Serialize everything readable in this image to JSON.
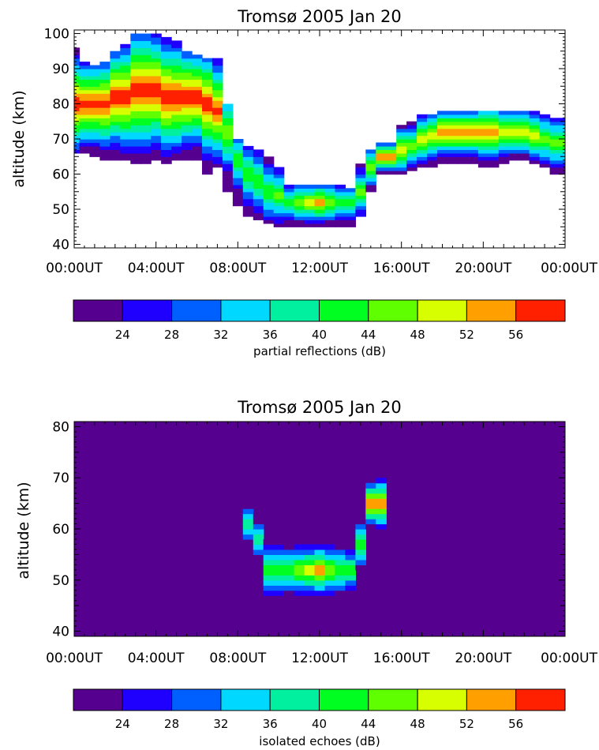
{
  "chart_data": [
    {
      "type": "heatmap",
      "title": "Tromsø 2005 Jan 20",
      "ylabel": "altitude (km)",
      "xlabel": "",
      "x_tick_labels": [
        "00:00UT",
        "04:00UT",
        "08:00UT",
        "12:00UT",
        "16:00UT",
        "20:00UT",
        "00:00UT"
      ],
      "x_range_hours": [
        0,
        24
      ],
      "y_ticks": [
        40,
        50,
        60,
        70,
        80,
        90,
        100
      ],
      "ylim": [
        39,
        101
      ],
      "background": "#ffffff",
      "colorbar": {
        "label": "partial reflections (dB)",
        "tick_labels": [
          "24",
          "28",
          "32",
          "36",
          "40",
          "44",
          "48",
          "52",
          "56"
        ],
        "range": [
          20,
          60
        ]
      },
      "columns": [
        {
          "t": 0.0,
          "bottom": 66,
          "top": 96,
          "peak": 80,
          "max": 60
        },
        {
          "t": 0.5,
          "bottom": 66,
          "top": 92,
          "peak": 80,
          "max": 60
        },
        {
          "t": 1.0,
          "bottom": 65,
          "top": 91,
          "peak": 80,
          "max": 60
        },
        {
          "t": 1.5,
          "bottom": 64,
          "top": 92,
          "peak": 80,
          "max": 60
        },
        {
          "t": 2.0,
          "bottom": 64,
          "top": 95,
          "peak": 82,
          "max": 60
        },
        {
          "t": 2.5,
          "bottom": 64,
          "top": 97,
          "peak": 82,
          "max": 60
        },
        {
          "t": 3.0,
          "bottom": 63,
          "top": 100,
          "peak": 84,
          "max": 60
        },
        {
          "t": 3.5,
          "bottom": 63,
          "top": 100,
          "peak": 84,
          "max": 60
        },
        {
          "t": 4.0,
          "bottom": 64,
          "top": 100,
          "peak": 84,
          "max": 60
        },
        {
          "t": 4.5,
          "bottom": 63,
          "top": 99,
          "peak": 82,
          "max": 60
        },
        {
          "t": 5.0,
          "bottom": 64,
          "top": 98,
          "peak": 82,
          "max": 60
        },
        {
          "t": 5.5,
          "bottom": 64,
          "top": 95,
          "peak": 82,
          "max": 60
        },
        {
          "t": 6.0,
          "bottom": 64,
          "top": 94,
          "peak": 82,
          "max": 60
        },
        {
          "t": 6.5,
          "bottom": 60,
          "top": 93,
          "peak": 80,
          "max": 60
        },
        {
          "t": 7.0,
          "bottom": 62,
          "top": 93,
          "peak": 78,
          "max": 58
        },
        {
          "t": 7.5,
          "bottom": 55,
          "top": 80,
          "peak": 72,
          "max": 48
        },
        {
          "t": 8.0,
          "bottom": 51,
          "top": 70,
          "peak": 64,
          "max": 44
        },
        {
          "t": 8.5,
          "bottom": 48,
          "top": 68,
          "peak": 60,
          "max": 44
        },
        {
          "t": 9.0,
          "bottom": 47,
          "top": 67,
          "peak": 58,
          "max": 44
        },
        {
          "t": 9.5,
          "bottom": 46,
          "top": 65,
          "peak": 55,
          "max": 44
        },
        {
          "t": 10.0,
          "bottom": 45,
          "top": 62,
          "peak": 54,
          "max": 46
        },
        {
          "t": 10.5,
          "bottom": 45,
          "top": 57,
          "peak": 52,
          "max": 46
        },
        {
          "t": 11.0,
          "bottom": 45,
          "top": 57,
          "peak": 52,
          "max": 48
        },
        {
          "t": 11.5,
          "bottom": 45,
          "top": 57,
          "peak": 52,
          "max": 52
        },
        {
          "t": 12.0,
          "bottom": 45,
          "top": 57,
          "peak": 52,
          "max": 56
        },
        {
          "t": 12.5,
          "bottom": 45,
          "top": 57,
          "peak": 52,
          "max": 50
        },
        {
          "t": 13.0,
          "bottom": 45,
          "top": 57,
          "peak": 52,
          "max": 46
        },
        {
          "t": 13.5,
          "bottom": 45,
          "top": 56,
          "peak": 52,
          "max": 44
        },
        {
          "t": 14.0,
          "bottom": 48,
          "top": 63,
          "peak": 55,
          "max": 46
        },
        {
          "t": 14.5,
          "bottom": 55,
          "top": 67,
          "peak": 62,
          "max": 48
        },
        {
          "t": 15.0,
          "bottom": 60,
          "top": 69,
          "peak": 65,
          "max": 58
        },
        {
          "t": 15.5,
          "bottom": 60,
          "top": 69,
          "peak": 65,
          "max": 56
        },
        {
          "t": 16.0,
          "bottom": 60,
          "top": 74,
          "peak": 67,
          "max": 52
        },
        {
          "t": 16.5,
          "bottom": 61,
          "top": 75,
          "peak": 68,
          "max": 50
        },
        {
          "t": 17.0,
          "bottom": 62,
          "top": 77,
          "peak": 70,
          "max": 52
        },
        {
          "t": 17.5,
          "bottom": 62,
          "top": 77,
          "peak": 71,
          "max": 54
        },
        {
          "t": 18.0,
          "bottom": 63,
          "top": 78,
          "peak": 72,
          "max": 56
        },
        {
          "t": 18.5,
          "bottom": 63,
          "top": 78,
          "peak": 72,
          "max": 56
        },
        {
          "t": 19.0,
          "bottom": 63,
          "top": 78,
          "peak": 72,
          "max": 56
        },
        {
          "t": 19.5,
          "bottom": 63,
          "top": 78,
          "peak": 72,
          "max": 56
        },
        {
          "t": 20.0,
          "bottom": 62,
          "top": 78,
          "peak": 72,
          "max": 58
        },
        {
          "t": 20.5,
          "bottom": 62,
          "top": 78,
          "peak": 72,
          "max": 58
        },
        {
          "t": 21.0,
          "bottom": 63,
          "top": 78,
          "peak": 72,
          "max": 54
        },
        {
          "t": 21.5,
          "bottom": 64,
          "top": 78,
          "peak": 72,
          "max": 52
        },
        {
          "t": 22.0,
          "bottom": 64,
          "top": 78,
          "peak": 72,
          "max": 52
        },
        {
          "t": 22.5,
          "bottom": 63,
          "top": 78,
          "peak": 71,
          "max": 50
        },
        {
          "t": 23.0,
          "bottom": 62,
          "top": 77,
          "peak": 70,
          "max": 48
        },
        {
          "t": 23.5,
          "bottom": 60,
          "top": 76,
          "peak": 69,
          "max": 46
        },
        {
          "t": 24.0,
          "bottom": 60,
          "top": 76,
          "peak": 69,
          "max": 46
        }
      ]
    },
    {
      "type": "heatmap",
      "title": "Tromsø 2005 Jan 20",
      "ylabel": "altitude (km)",
      "xlabel": "",
      "x_tick_labels": [
        "00:00UT",
        "04:00UT",
        "08:00UT",
        "12:00UT",
        "16:00UT",
        "20:00UT",
        "00:00UT"
      ],
      "x_range_hours": [
        0,
        24
      ],
      "y_ticks": [
        40,
        50,
        60,
        70,
        80
      ],
      "ylim": [
        39,
        81
      ],
      "background": "#55008f",
      "colorbar": {
        "label": "isolated echoes (dB)",
        "tick_labels": [
          "24",
          "28",
          "32",
          "36",
          "40",
          "44",
          "48",
          "52",
          "56"
        ],
        "range": [
          20,
          60
        ]
      },
      "columns": [
        {
          "t": 8.5,
          "bottom": 58,
          "top": 66,
          "peak": 61,
          "max": 40
        },
        {
          "t": 9.0,
          "bottom": 55,
          "top": 63,
          "peak": 58,
          "max": 42
        },
        {
          "t": 9.5,
          "bottom": 47,
          "top": 58,
          "peak": 52,
          "max": 46
        },
        {
          "t": 10.0,
          "bottom": 47,
          "top": 58,
          "peak": 52,
          "max": 46
        },
        {
          "t": 10.5,
          "bottom": 47,
          "top": 57,
          "peak": 52,
          "max": 46
        },
        {
          "t": 11.0,
          "bottom": 47,
          "top": 57,
          "peak": 52,
          "max": 48
        },
        {
          "t": 11.5,
          "bottom": 47,
          "top": 57,
          "peak": 52,
          "max": 52
        },
        {
          "t": 12.0,
          "bottom": 47,
          "top": 57,
          "peak": 52,
          "max": 56
        },
        {
          "t": 12.5,
          "bottom": 47,
          "top": 57,
          "peak": 52,
          "max": 50
        },
        {
          "t": 13.0,
          "bottom": 47,
          "top": 57,
          "peak": 52,
          "max": 46
        },
        {
          "t": 13.5,
          "bottom": 47,
          "top": 56,
          "peak": 52,
          "max": 44
        },
        {
          "t": 14.0,
          "bottom": 52,
          "top": 62,
          "peak": 57,
          "max": 46
        },
        {
          "t": 14.5,
          "bottom": 60,
          "top": 69,
          "peak": 65,
          "max": 56
        },
        {
          "t": 15.0,
          "bottom": 60,
          "top": 70,
          "peak": 65,
          "max": 58
        }
      ]
    }
  ],
  "palette": [
    "#55008f",
    "#1f00ff",
    "#0060ff",
    "#00d8ff",
    "#00f0a0",
    "#00ff20",
    "#60ff00",
    "#d8ff00",
    "#ff9f00",
    "#ff2000"
  ]
}
